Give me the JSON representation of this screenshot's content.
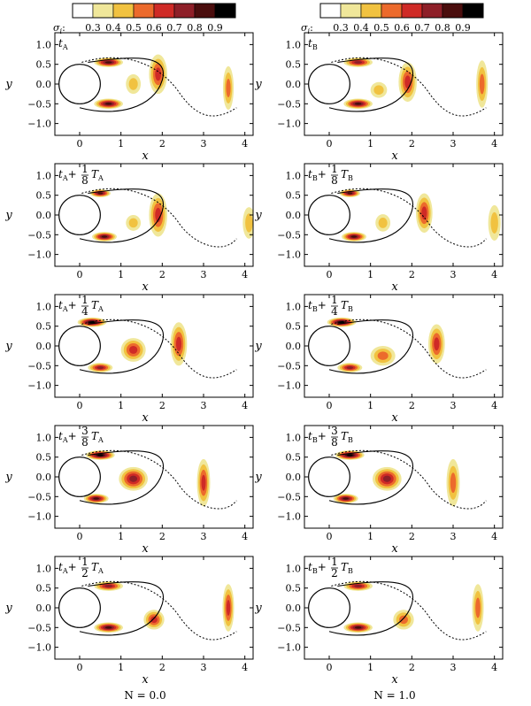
{
  "colorbar": {
    "label_symbol": "σ",
    "label_subscript": "i",
    "label_colon": ":",
    "ticks": [
      "0.3",
      "0.4",
      "0.5",
      "0.6",
      "0.7",
      "0.8",
      "0.9"
    ],
    "colors": [
      "#ffffff",
      "#f0e79a",
      "#f1c240",
      "#ec6a2c",
      "#cf2a26",
      "#8e1f28",
      "#4a0d0d",
      "#000000"
    ]
  },
  "x_ticks": [
    "0",
    "1",
    "2",
    "3",
    "4"
  ],
  "y_ticks": [
    "1.0",
    "0.5",
    "0.0",
    "−0.5",
    "−1.0"
  ],
  "xlabel": "x",
  "ylabel": "y",
  "columns": [
    {
      "name": "N = 0.0",
      "sub": "A"
    },
    {
      "name": "N = 1.0",
      "sub": "B"
    }
  ],
  "rows": [
    {
      "frac": null
    },
    {
      "frac": [
        "1",
        "8"
      ]
    },
    {
      "frac": [
        "1",
        "4"
      ]
    },
    {
      "frac": [
        "3",
        "8"
      ]
    },
    {
      "frac": [
        "1",
        "2"
      ]
    }
  ],
  "chart_data": {
    "type": "heatmap",
    "title": "",
    "xlabel": "x",
    "ylabel": "y",
    "xlim": [
      -0.6,
      4.2
    ],
    "ylim": [
      -1.3,
      1.3
    ],
    "colorbar_label": "σi",
    "colorbar_ticks": [
      0.3,
      0.4,
      0.5,
      0.6,
      0.7,
      0.8,
      0.9
    ],
    "colorbar_colors": [
      "#ffffff",
      "#f0e79a",
      "#f1c240",
      "#ec6a2c",
      "#cf2a26",
      "#8e1f28",
      "#4a0d0d",
      "#000000"
    ],
    "cylinder": {
      "center": [
        0,
        0
      ],
      "radius": 0.5
    },
    "panels": [
      {
        "column": "N = 0.0",
        "time": "tA",
        "blobs": [
          [
            0.7,
            0.55,
            0.35,
            0.12,
            0.8
          ],
          [
            0.7,
            -0.5,
            0.35,
            0.13,
            0.85
          ],
          [
            1.9,
            0.25,
            0.22,
            0.5,
            0.6
          ],
          [
            1.3,
            0.0,
            0.18,
            0.25,
            0.4
          ],
          [
            3.6,
            -0.1,
            0.13,
            0.55,
            0.55
          ]
        ]
      },
      {
        "column": "N = 1.0",
        "time": "tB",
        "blobs": [
          [
            0.7,
            0.55,
            0.35,
            0.12,
            0.75
          ],
          [
            0.7,
            -0.5,
            0.35,
            0.13,
            0.8
          ],
          [
            1.9,
            0.05,
            0.22,
            0.5,
            0.6
          ],
          [
            1.2,
            -0.15,
            0.2,
            0.2,
            0.4
          ],
          [
            3.7,
            0.0,
            0.14,
            0.6,
            0.5
          ]
        ]
      },
      {
        "column": "N = 0.0",
        "time": "tA + 1/8 TA",
        "blobs": [
          [
            0.5,
            0.55,
            0.25,
            0.1,
            0.85
          ],
          [
            0.6,
            -0.55,
            0.3,
            0.12,
            0.85
          ],
          [
            1.9,
            0.0,
            0.22,
            0.55,
            0.65
          ],
          [
            1.3,
            -0.2,
            0.18,
            0.2,
            0.4
          ],
          [
            4.1,
            -0.2,
            0.15,
            0.4,
            0.45
          ]
        ]
      },
      {
        "column": "N = 1.0",
        "time": "tB + 1/8 TB",
        "blobs": [
          [
            0.5,
            0.55,
            0.25,
            0.1,
            0.8
          ],
          [
            0.6,
            -0.55,
            0.3,
            0.12,
            0.8
          ],
          [
            2.3,
            0.05,
            0.2,
            0.5,
            0.6
          ],
          [
            1.3,
            -0.2,
            0.18,
            0.22,
            0.4
          ],
          [
            4.0,
            -0.2,
            0.15,
            0.45,
            0.45
          ]
        ]
      },
      {
        "column": "N = 0.0",
        "time": "tA + 1/4 TA",
        "blobs": [
          [
            0.3,
            0.6,
            0.35,
            0.12,
            0.9
          ],
          [
            0.5,
            -0.55,
            0.3,
            0.12,
            0.75
          ],
          [
            1.3,
            -0.1,
            0.3,
            0.3,
            0.6
          ],
          [
            2.4,
            0.05,
            0.2,
            0.55,
            0.65
          ]
        ]
      },
      {
        "column": "N = 1.0",
        "time": "tB + 1/4 TB",
        "blobs": [
          [
            0.3,
            0.6,
            0.35,
            0.12,
            0.9
          ],
          [
            0.5,
            -0.55,
            0.3,
            0.12,
            0.75
          ],
          [
            1.3,
            -0.25,
            0.3,
            0.25,
            0.55
          ],
          [
            2.6,
            0.05,
            0.2,
            0.5,
            0.6
          ]
        ]
      },
      {
        "column": "N = 0.0",
        "time": "tA + 3/8 TA",
        "blobs": [
          [
            0.5,
            0.55,
            0.35,
            0.12,
            0.9
          ],
          [
            0.4,
            -0.55,
            0.3,
            0.12,
            0.8
          ],
          [
            1.3,
            -0.05,
            0.35,
            0.3,
            0.7
          ],
          [
            3.0,
            -0.15,
            0.16,
            0.6,
            0.6
          ]
        ]
      },
      {
        "column": "N = 1.0",
        "time": "tB + 3/8 TB",
        "blobs": [
          [
            0.5,
            0.55,
            0.35,
            0.12,
            0.9
          ],
          [
            0.4,
            -0.55,
            0.3,
            0.12,
            0.8
          ],
          [
            1.4,
            -0.05,
            0.35,
            0.3,
            0.7
          ],
          [
            3.0,
            -0.15,
            0.16,
            0.6,
            0.55
          ]
        ]
      },
      {
        "column": "N = 0.0",
        "time": "tA + 1/2 TA",
        "blobs": [
          [
            0.7,
            0.55,
            0.35,
            0.12,
            0.7
          ],
          [
            0.7,
            -0.5,
            0.35,
            0.13,
            0.85
          ],
          [
            1.8,
            -0.3,
            0.25,
            0.25,
            0.6
          ],
          [
            3.6,
            0.0,
            0.14,
            0.6,
            0.6
          ]
        ]
      },
      {
        "column": "N = 1.0",
        "time": "tB + 1/2 TB",
        "blobs": [
          [
            0.7,
            0.55,
            0.35,
            0.12,
            0.75
          ],
          [
            0.7,
            -0.5,
            0.35,
            0.13,
            0.85
          ],
          [
            1.8,
            -0.3,
            0.25,
            0.25,
            0.55
          ],
          [
            3.6,
            0.0,
            0.14,
            0.6,
            0.55
          ]
        ]
      }
    ]
  }
}
